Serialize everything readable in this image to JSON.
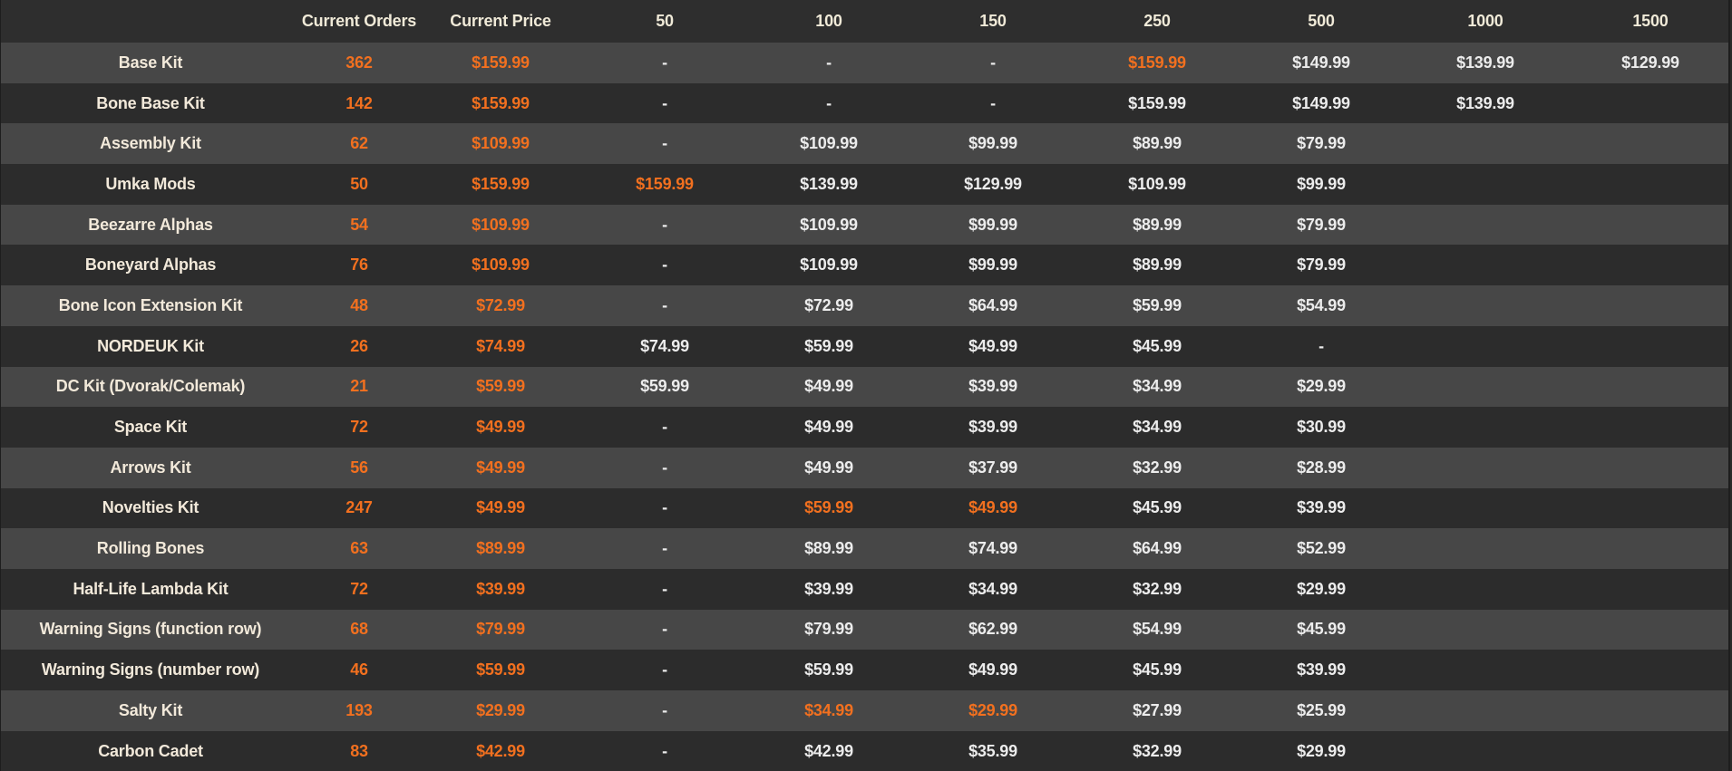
{
  "colors": {
    "accent": "#f2701f",
    "row_light": "#474747",
    "row_dark": "#2c2c2c",
    "text": "#ececec"
  },
  "headers": [
    "",
    "Current Orders",
    "Current Price",
    "50",
    "100",
    "150",
    "250",
    "500",
    "1000",
    "1500"
  ],
  "rows": [
    {
      "name": "Base Kit",
      "orders": "362",
      "price": "$159.99",
      "tiers": [
        "-",
        "-",
        "-",
        "$159.99",
        "$149.99",
        "$139.99",
        "$129.99"
      ],
      "highlight": [
        3
      ]
    },
    {
      "name": "Bone Base Kit",
      "orders": "142",
      "price": "$159.99",
      "tiers": [
        "-",
        "-",
        "-",
        "$159.99",
        "$149.99",
        "$139.99",
        ""
      ],
      "highlight": []
    },
    {
      "name": "Assembly Kit",
      "orders": "62",
      "price": "$109.99",
      "tiers": [
        "-",
        "$109.99",
        "$99.99",
        "$89.99",
        "$79.99",
        "",
        ""
      ],
      "highlight": []
    },
    {
      "name": "Umka Mods",
      "orders": "50",
      "price": "$159.99",
      "tiers": [
        "$159.99",
        "$139.99",
        "$129.99",
        "$109.99",
        "$99.99",
        "",
        ""
      ],
      "highlight": [
        0
      ]
    },
    {
      "name": "Beezarre Alphas",
      "orders": "54",
      "price": "$109.99",
      "tiers": [
        "-",
        "$109.99",
        "$99.99",
        "$89.99",
        "$79.99",
        "",
        ""
      ],
      "highlight": []
    },
    {
      "name": "Boneyard Alphas",
      "orders": "76",
      "price": "$109.99",
      "tiers": [
        "-",
        "$109.99",
        "$99.99",
        "$89.99",
        "$79.99",
        "",
        ""
      ],
      "highlight": []
    },
    {
      "name": "Bone Icon Extension Kit",
      "orders": "48",
      "price": "$72.99",
      "tiers": [
        "-",
        "$72.99",
        "$64.99",
        "$59.99",
        "$54.99",
        "",
        ""
      ],
      "highlight": []
    },
    {
      "name": "NORDEUK Kit",
      "orders": "26",
      "price": "$74.99",
      "tiers": [
        "$74.99",
        "$59.99",
        "$49.99",
        "$45.99",
        "-",
        "",
        ""
      ],
      "highlight": []
    },
    {
      "name": "DC Kit (Dvorak/Colemak)",
      "orders": "21",
      "price": "$59.99",
      "tiers": [
        "$59.99",
        "$49.99",
        "$39.99",
        "$34.99",
        "$29.99",
        "",
        ""
      ],
      "highlight": []
    },
    {
      "name": "Space Kit",
      "orders": "72",
      "price": "$49.99",
      "tiers": [
        "-",
        "$49.99",
        "$39.99",
        "$34.99",
        "$30.99",
        "",
        ""
      ],
      "highlight": []
    },
    {
      "name": "Arrows Kit",
      "orders": "56",
      "price": "$49.99",
      "tiers": [
        "-",
        "$49.99",
        "$37.99",
        "$32.99",
        "$28.99",
        "",
        ""
      ],
      "highlight": []
    },
    {
      "name": "Novelties Kit",
      "orders": "247",
      "price": "$49.99",
      "tiers": [
        "-",
        "$59.99",
        "$49.99",
        "$45.99",
        "$39.99",
        "",
        ""
      ],
      "highlight": [
        1,
        2
      ]
    },
    {
      "name": "Rolling Bones",
      "orders": "63",
      "price": "$89.99",
      "tiers": [
        "-",
        "$89.99",
        "$74.99",
        "$64.99",
        "$52.99",
        "",
        ""
      ],
      "highlight": []
    },
    {
      "name": "Half-Life Lambda Kit",
      "orders": "72",
      "price": "$39.99",
      "tiers": [
        "-",
        "$39.99",
        "$34.99",
        "$32.99",
        "$29.99",
        "",
        ""
      ],
      "highlight": []
    },
    {
      "name": "Warning Signs (function row)",
      "orders": "68",
      "price": "$79.99",
      "tiers": [
        "-",
        "$79.99",
        "$62.99",
        "$54.99",
        "$45.99",
        "",
        ""
      ],
      "highlight": []
    },
    {
      "name": "Warning Signs (number row)",
      "orders": "46",
      "price": "$59.99",
      "tiers": [
        "-",
        "$59.99",
        "$49.99",
        "$45.99",
        "$39.99",
        "",
        ""
      ],
      "highlight": []
    },
    {
      "name": "Salty Kit",
      "orders": "193",
      "price": "$29.99",
      "tiers": [
        "-",
        "$34.99",
        "$29.99",
        "$27.99",
        "$25.99",
        "",
        ""
      ],
      "highlight": [
        1,
        2
      ]
    },
    {
      "name": "Carbon Cadet",
      "orders": "83",
      "price": "$42.99",
      "tiers": [
        "-",
        "$42.99",
        "$35.99",
        "$32.99",
        "$29.99",
        "",
        ""
      ],
      "highlight": []
    }
  ]
}
